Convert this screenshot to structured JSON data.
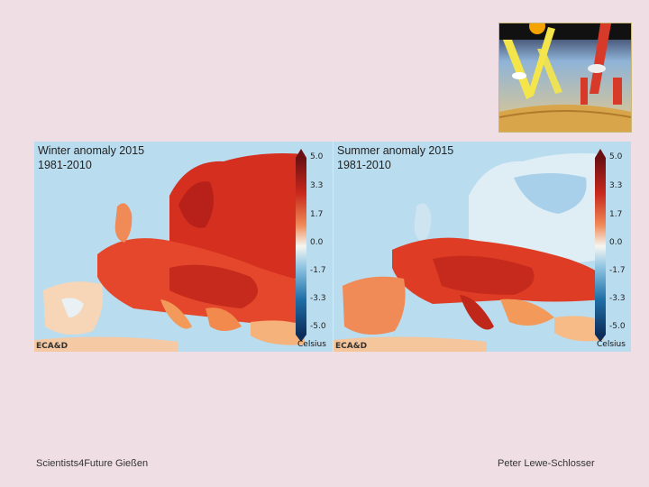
{
  "diagram": {
    "description_icon": "earth-energy-budget-diagram"
  },
  "maps": [
    {
      "title_line1": "Winter anomaly 2015",
      "title_line2": "1981-2010",
      "logo": "ECA&D",
      "scale_ticks": [
        "5.0",
        "3.3",
        "1.7",
        "0.0",
        "-1.7",
        "-3.3",
        "-5.0"
      ],
      "scale_unit": "Celsius"
    },
    {
      "title_line1": "Summer anomaly 2015",
      "title_line2": "1981-2010",
      "logo": "ECA&D",
      "scale_ticks": [
        "5.0",
        "3.3",
        "1.7",
        "0.0",
        "-1.7",
        "-3.3",
        "-5.0"
      ],
      "scale_unit": "Celsius"
    }
  ],
  "footer": {
    "left": "Scientists4Future   Gießen",
    "right": "Peter Lewe-Schlosser"
  },
  "colors": {
    "background": "#efdfe5",
    "sea": "#b9dcef",
    "hot": "#d8321f",
    "warm": "#f39a5a"
  }
}
